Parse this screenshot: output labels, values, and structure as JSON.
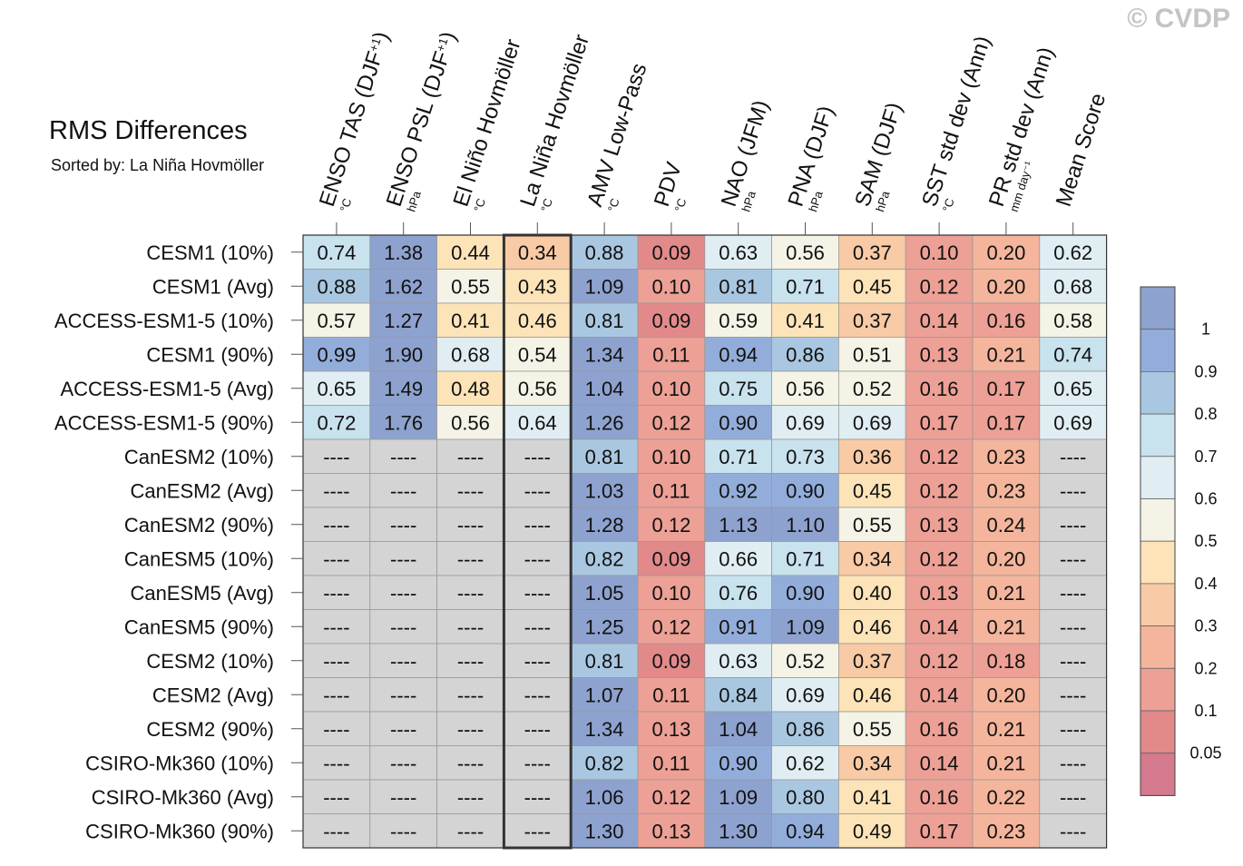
{
  "title": "RMS Differences",
  "subtitle": "Sorted by: La Niña Hovmöller",
  "copyright": "© CVDP",
  "chart_data": {
    "type": "heatmap",
    "title": "RMS Differences",
    "subtitle": "Sorted by: La Niña Hovmöller",
    "missing_label": "----",
    "missing_color": "#d4d4d4",
    "highlighted_column": 3,
    "columns": [
      {
        "name": "ENSO TAS (DJF",
        "sup": "+1",
        "close": ")",
        "unit": "°C"
      },
      {
        "name": "ENSO PSL (DJF",
        "sup": "+1",
        "close": ")",
        "unit": "hPa"
      },
      {
        "name": "El Niño Hovmöller",
        "sup": "",
        "close": "",
        "unit": "°C"
      },
      {
        "name": "La Niña Hovmöller",
        "sup": "",
        "close": "",
        "unit": "°C"
      },
      {
        "name": "AMV Low-Pass",
        "sup": "",
        "close": "",
        "unit": "°C"
      },
      {
        "name": "PDV",
        "sup": "",
        "close": "",
        "unit": "°C"
      },
      {
        "name": "NAO (JFM)",
        "sup": "",
        "close": "",
        "unit": "hPa"
      },
      {
        "name": "PNA (DJF)",
        "sup": "",
        "close": "",
        "unit": "hPa"
      },
      {
        "name": "SAM (DJF)",
        "sup": "",
        "close": "",
        "unit": "hPa"
      },
      {
        "name": "SST std dev (Ann)",
        "sup": "",
        "close": "",
        "unit": "°C"
      },
      {
        "name": "PR std dev (Ann)",
        "sup": "",
        "close": "",
        "unit": "mm day⁻¹"
      },
      {
        "name": "Mean Score",
        "sup": "",
        "close": "",
        "unit": ""
      }
    ],
    "rows": [
      "CESM1 (10%)",
      "CESM1 (Avg)",
      "ACCESS-ESM1-5 (10%)",
      "CESM1 (90%)",
      "ACCESS-ESM1-5 (Avg)",
      "ACCESS-ESM1-5 (90%)",
      "CanESM2 (10%)",
      "CanESM2 (Avg)",
      "CanESM2 (90%)",
      "CanESM5 (10%)",
      "CanESM5 (Avg)",
      "CanESM5 (90%)",
      "CESM2 (10%)",
      "CESM2 (Avg)",
      "CESM2 (90%)",
      "CSIRO-Mk360 (10%)",
      "CSIRO-Mk360 (Avg)",
      "CSIRO-Mk360 (90%)"
    ],
    "values": [
      [
        0.74,
        1.38,
        0.44,
        0.34,
        0.88,
        0.09,
        0.63,
        0.56,
        0.37,
        0.1,
        0.2,
        0.62
      ],
      [
        0.88,
        1.62,
        0.55,
        0.43,
        1.09,
        0.1,
        0.81,
        0.71,
        0.45,
        0.12,
        0.2,
        0.68
      ],
      [
        0.57,
        1.27,
        0.41,
        0.46,
        0.81,
        0.09,
        0.59,
        0.41,
        0.37,
        0.14,
        0.16,
        0.58
      ],
      [
        0.99,
        1.9,
        0.68,
        0.54,
        1.34,
        0.11,
        0.94,
        0.86,
        0.51,
        0.13,
        0.21,
        0.74
      ],
      [
        0.65,
        1.49,
        0.48,
        0.56,
        1.04,
        0.1,
        0.75,
        0.56,
        0.52,
        0.16,
        0.17,
        0.65
      ],
      [
        0.72,
        1.76,
        0.56,
        0.64,
        1.26,
        0.12,
        0.9,
        0.69,
        0.69,
        0.17,
        0.17,
        0.69
      ],
      [
        null,
        null,
        null,
        null,
        0.81,
        0.1,
        0.71,
        0.73,
        0.36,
        0.12,
        0.23,
        null
      ],
      [
        null,
        null,
        null,
        null,
        1.03,
        0.11,
        0.92,
        0.9,
        0.45,
        0.12,
        0.23,
        null
      ],
      [
        null,
        null,
        null,
        null,
        1.28,
        0.12,
        1.13,
        1.1,
        0.55,
        0.13,
        0.24,
        null
      ],
      [
        null,
        null,
        null,
        null,
        0.82,
        0.09,
        0.66,
        0.71,
        0.34,
        0.12,
        0.2,
        null
      ],
      [
        null,
        null,
        null,
        null,
        1.05,
        0.1,
        0.76,
        0.9,
        0.4,
        0.13,
        0.21,
        null
      ],
      [
        null,
        null,
        null,
        null,
        1.25,
        0.12,
        0.91,
        1.09,
        0.46,
        0.14,
        0.21,
        null
      ],
      [
        null,
        null,
        null,
        null,
        0.81,
        0.09,
        0.63,
        0.52,
        0.37,
        0.12,
        0.18,
        null
      ],
      [
        null,
        null,
        null,
        null,
        1.07,
        0.11,
        0.84,
        0.69,
        0.46,
        0.14,
        0.2,
        null
      ],
      [
        null,
        null,
        null,
        null,
        1.34,
        0.13,
        1.04,
        0.86,
        0.55,
        0.16,
        0.21,
        null
      ],
      [
        null,
        null,
        null,
        null,
        0.82,
        0.11,
        0.9,
        0.62,
        0.34,
        0.14,
        0.21,
        null
      ],
      [
        null,
        null,
        null,
        null,
        1.06,
        0.12,
        1.09,
        0.8,
        0.41,
        0.16,
        0.22,
        null
      ],
      [
        null,
        null,
        null,
        null,
        1.3,
        0.13,
        1.3,
        0.94,
        0.49,
        0.17,
        0.23,
        null
      ]
    ],
    "colorbar": {
      "labels": [
        "1",
        "0.9",
        "0.8",
        "0.7",
        "0.6",
        "0.5",
        "0.4",
        "0.3",
        "0.2",
        "0.1",
        "0.05"
      ],
      "thresholds": [
        0.05,
        0.1,
        0.2,
        0.3,
        0.4,
        0.5,
        0.6,
        0.7,
        0.8,
        0.9,
        1
      ],
      "colors": [
        "#d57a8f",
        "#e2898a",
        "#eda095",
        "#f4b59c",
        "#f8caa5",
        "#fce3b8",
        "#f4f3e6",
        "#e0eef3",
        "#c8e2ee",
        "#a9c7e0",
        "#93addb",
        "#8ea2cf"
      ]
    }
  }
}
